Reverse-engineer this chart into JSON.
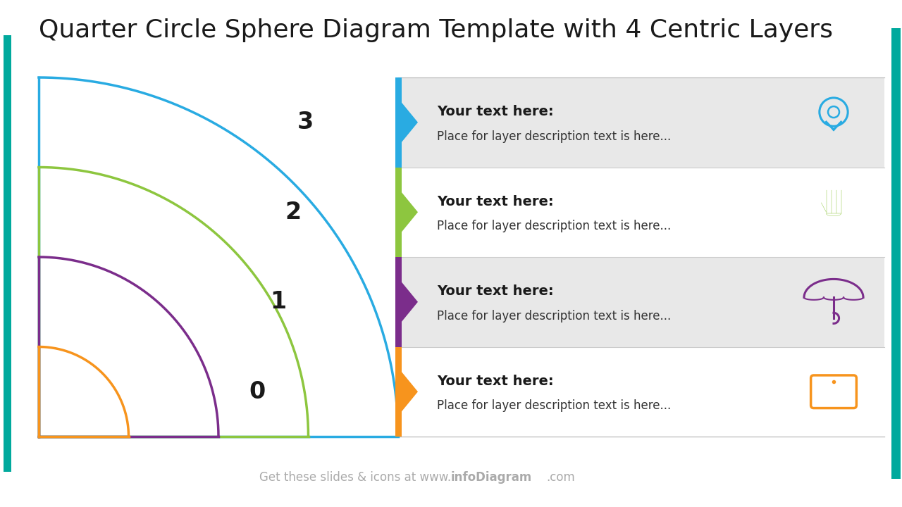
{
  "title": "Quarter Circle Sphere Diagram Template with 4 Centric Layers",
  "title_fontsize": 26,
  "bg_color": "#ffffff",
  "layers": [
    {
      "num": 3,
      "color": "#29ABE2",
      "label": "Your text here:",
      "desc": "Place for layer description text is here...",
      "bg": "#E8E8E8"
    },
    {
      "num": 2,
      "color": "#8DC63F",
      "label": "Your text here:",
      "desc": "Place for layer description text is here...",
      "bg": "#ffffff"
    },
    {
      "num": 1,
      "color": "#7B2D8B",
      "label": "Your text here:",
      "desc": "Place for layer description text is here...",
      "bg": "#E8E8E8"
    },
    {
      "num": 0,
      "color": "#F7941D",
      "label": "Your text here:",
      "desc": "Place for layer description text is here...",
      "bg": "#ffffff"
    }
  ],
  "teal_color": "#00A99D",
  "subtitle_normal": "Get these slides & icons at www.",
  "subtitle_bold": "infoDiagram",
  "subtitle_end": ".com"
}
